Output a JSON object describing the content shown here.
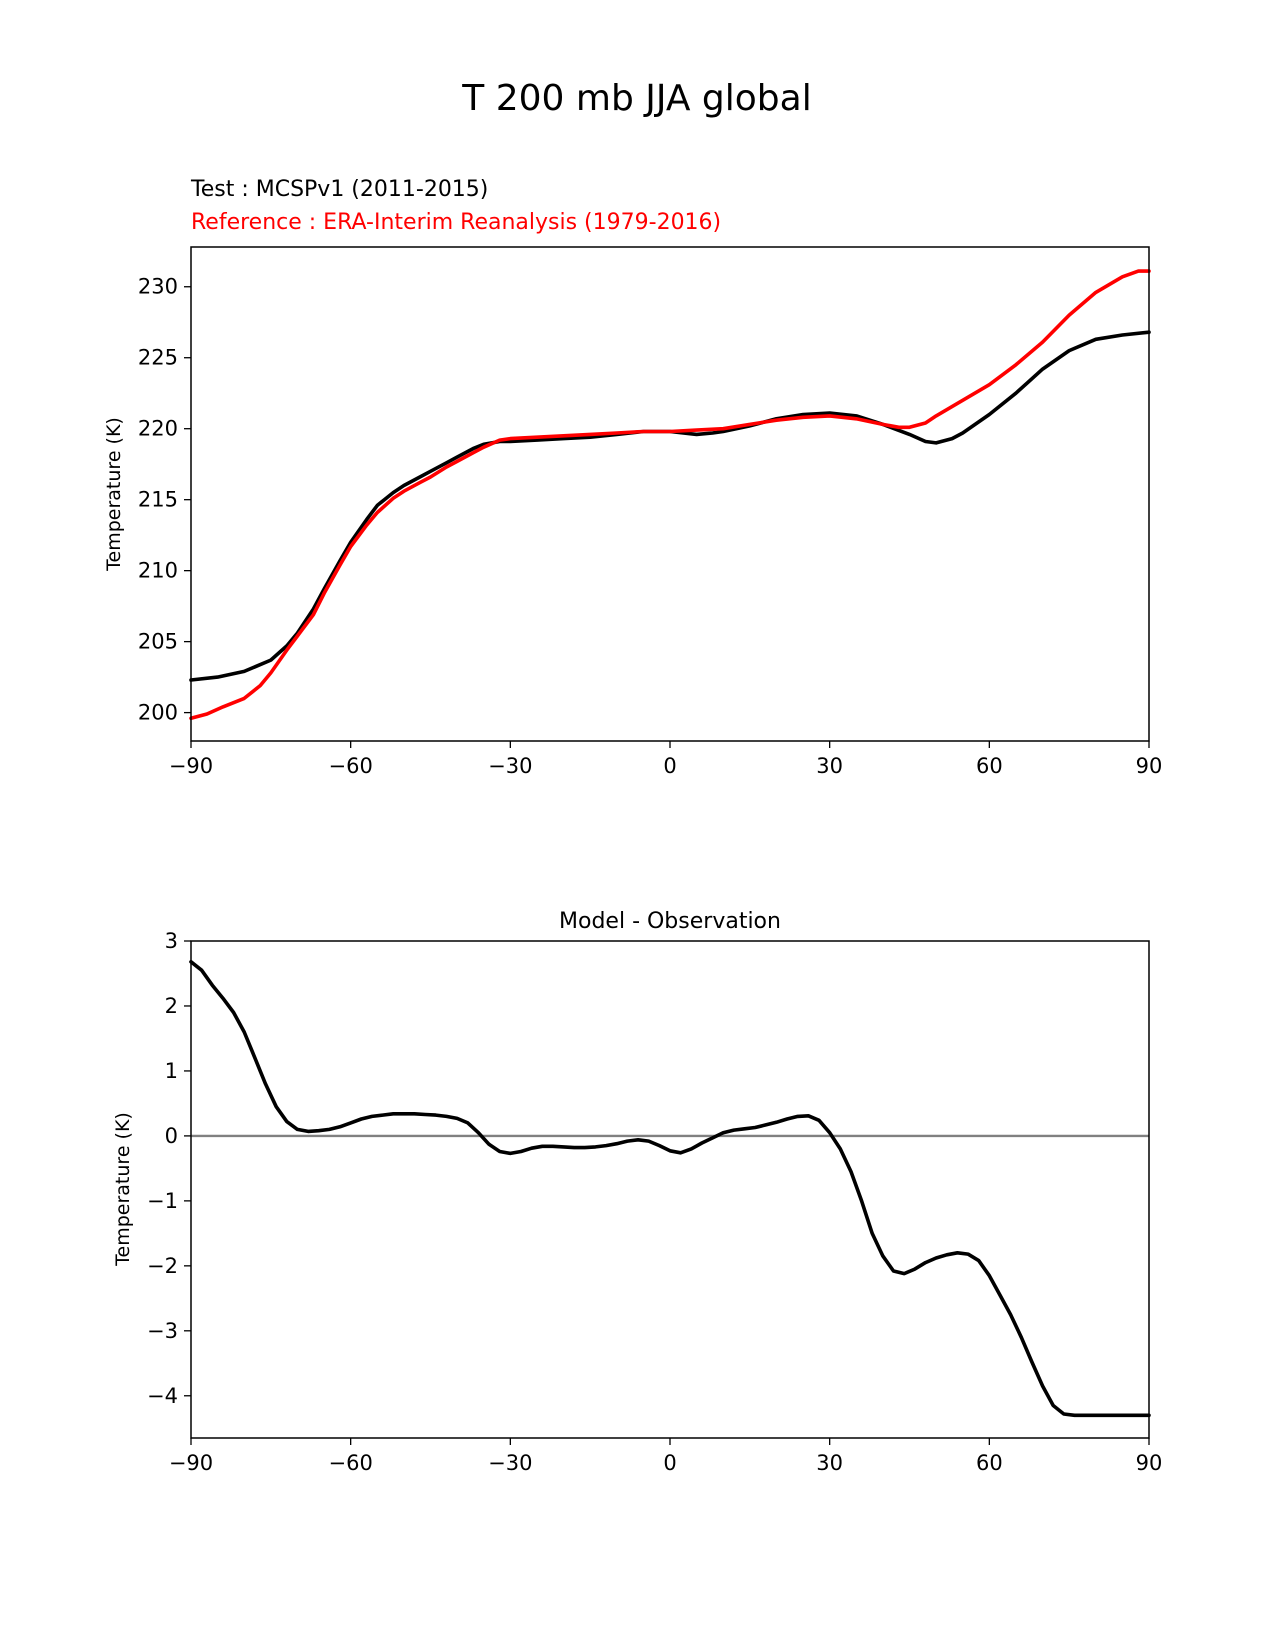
{
  "figure": {
    "suptitle": "T 200 mb JJA global"
  },
  "colors": {
    "test": "#000000",
    "reference": "#ff0000",
    "zero_line": "#808080",
    "axes": "#000000"
  },
  "chart_data": [
    {
      "type": "line",
      "title_test": "Test : MCSPv1 (2011-2015)",
      "title_reference": "Reference : ERA-Interim Reanalysis (1979-2016)",
      "xlabel": "",
      "ylabel": "Temperature (K)",
      "xlim": [
        -90,
        90
      ],
      "ylim": [
        198.0,
        232.8
      ],
      "xticks": [
        -90,
        -60,
        -30,
        0,
        30,
        60,
        90
      ],
      "xtick_labels": [
        "−90",
        "−60",
        "−30",
        "0",
        "30",
        "60",
        "90"
      ],
      "yticks": [
        200,
        205,
        210,
        215,
        220,
        225,
        230
      ],
      "ytick_labels": [
        "200",
        "205",
        "210",
        "215",
        "220",
        "225",
        "230"
      ],
      "series": [
        {
          "name": "Test : MCSPv1 (2011-2015)",
          "color": "#000000",
          "x": [
            -90,
            -85,
            -80,
            -75,
            -72,
            -70,
            -67,
            -65,
            -62,
            -60,
            -57,
            -55,
            -52,
            -50,
            -47,
            -45,
            -42,
            -40,
            -37,
            -35,
            -32,
            -30,
            -25,
            -20,
            -15,
            -10,
            -5,
            0,
            5,
            8,
            10,
            15,
            20,
            25,
            30,
            35,
            40,
            45,
            48,
            50,
            53,
            55,
            60,
            65,
            70,
            75,
            80,
            85,
            90
          ],
          "y": [
            202.3,
            202.5,
            202.9,
            203.7,
            204.7,
            205.6,
            207.3,
            208.7,
            210.7,
            212.0,
            213.6,
            214.6,
            215.5,
            216.0,
            216.6,
            217.0,
            217.6,
            218.0,
            218.6,
            218.9,
            219.1,
            219.1,
            219.2,
            219.3,
            219.4,
            219.6,
            219.8,
            219.8,
            219.6,
            219.7,
            219.8,
            220.2,
            220.7,
            221.0,
            221.1,
            220.9,
            220.3,
            219.6,
            219.1,
            219.0,
            219.3,
            219.7,
            221.0,
            222.5,
            224.2,
            225.5,
            226.3,
            226.6,
            226.8
          ]
        },
        {
          "name": "Reference : ERA-Interim Reanalysis (1979-2016)",
          "color": "#ff0000",
          "x": [
            -90,
            -87,
            -84,
            -80,
            -77,
            -75,
            -72,
            -70,
            -67,
            -65,
            -62,
            -60,
            -57,
            -55,
            -52,
            -50,
            -47,
            -45,
            -42,
            -40,
            -37,
            -35,
            -32,
            -30,
            -25,
            -20,
            -15,
            -10,
            -5,
            0,
            5,
            10,
            15,
            20,
            25,
            30,
            35,
            40,
            43,
            45,
            48,
            50,
            55,
            60,
            65,
            70,
            75,
            80,
            85,
            88,
            90
          ],
          "y": [
            199.6,
            199.9,
            200.4,
            201.0,
            201.9,
            202.8,
            204.4,
            205.4,
            206.9,
            208.4,
            210.4,
            211.7,
            213.2,
            214.1,
            215.1,
            215.6,
            216.2,
            216.6,
            217.3,
            217.7,
            218.3,
            218.7,
            219.2,
            219.3,
            219.4,
            219.5,
            219.6,
            219.7,
            219.8,
            219.8,
            219.9,
            220.0,
            220.3,
            220.6,
            220.8,
            220.9,
            220.7,
            220.3,
            220.1,
            220.1,
            220.4,
            220.9,
            222.0,
            223.1,
            224.5,
            226.1,
            228.0,
            229.6,
            230.7,
            231.1,
            231.1
          ]
        }
      ]
    },
    {
      "type": "line",
      "title": "Model - Observation",
      "xlabel": "",
      "ylabel": "Temperature (K)",
      "xlim": [
        -90,
        90
      ],
      "ylim": [
        -4.65,
        3.0
      ],
      "xticks": [
        -90,
        -60,
        -30,
        0,
        30,
        60,
        90
      ],
      "xtick_labels": [
        "−90",
        "−60",
        "−30",
        "0",
        "30",
        "60",
        "90"
      ],
      "yticks": [
        -4,
        -3,
        -2,
        -1,
        0,
        1,
        2,
        3
      ],
      "ytick_labels": [
        "−4",
        "−3",
        "−2",
        "−1",
        "0",
        "1",
        "2",
        "3"
      ],
      "zero_line": 0,
      "series": [
        {
          "name": "Model - Observation",
          "color": "#000000",
          "x": [
            -90,
            -88,
            -86,
            -84,
            -82,
            -80,
            -78,
            -76,
            -74,
            -72,
            -70,
            -68,
            -66,
            -64,
            -62,
            -60,
            -58,
            -56,
            -54,
            -52,
            -50,
            -48,
            -46,
            -44,
            -42,
            -40,
            -38,
            -36,
            -34,
            -32,
            -30,
            -28,
            -26,
            -24,
            -22,
            -20,
            -18,
            -16,
            -14,
            -12,
            -10,
            -8,
            -6,
            -4,
            -2,
            0,
            2,
            4,
            6,
            8,
            10,
            12,
            14,
            16,
            18,
            20,
            22,
            24,
            26,
            28,
            30,
            32,
            34,
            36,
            38,
            40,
            42,
            44,
            46,
            48,
            50,
            52,
            54,
            56,
            58,
            60,
            62,
            64,
            66,
            68,
            70,
            72,
            74,
            76,
            78,
            80,
            82,
            84,
            86,
            88,
            90
          ],
          "y": [
            2.68,
            2.55,
            2.32,
            2.12,
            1.9,
            1.6,
            1.2,
            0.8,
            0.45,
            0.22,
            0.1,
            0.07,
            0.08,
            0.1,
            0.14,
            0.2,
            0.26,
            0.3,
            0.32,
            0.34,
            0.34,
            0.34,
            0.33,
            0.32,
            0.3,
            0.27,
            0.2,
            0.05,
            -0.13,
            -0.24,
            -0.27,
            -0.24,
            -0.19,
            -0.16,
            -0.16,
            -0.17,
            -0.18,
            -0.18,
            -0.17,
            -0.15,
            -0.12,
            -0.08,
            -0.06,
            -0.08,
            -0.15,
            -0.23,
            -0.26,
            -0.2,
            -0.11,
            -0.03,
            0.05,
            0.09,
            0.11,
            0.13,
            0.17,
            0.21,
            0.26,
            0.3,
            0.31,
            0.24,
            0.05,
            -0.2,
            -0.55,
            -1.0,
            -1.5,
            -1.85,
            -2.08,
            -2.12,
            -2.05,
            -1.95,
            -1.88,
            -1.83,
            -1.8,
            -1.82,
            -1.92,
            -2.15,
            -2.45,
            -2.75,
            -3.1,
            -3.48,
            -3.85,
            -4.15,
            -4.28,
            -4.3,
            -4.3,
            -4.3,
            -4.3,
            -4.3,
            -4.3,
            -4.3,
            -4.3
          ]
        }
      ]
    }
  ]
}
